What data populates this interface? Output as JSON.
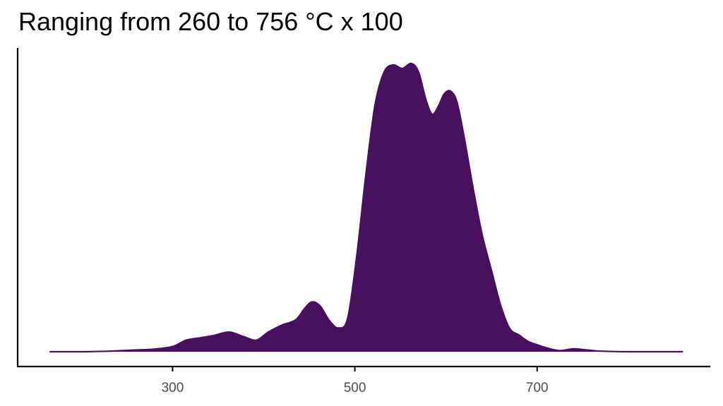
{
  "chart_data": {
    "type": "area",
    "subtype": "density",
    "title": "Ranging from 260 to 756 °C x 100",
    "xlabel": "",
    "ylabel": "",
    "x_ticks": [
      300,
      500,
      700
    ],
    "xlim": [
      130,
      890
    ],
    "ylim": [
      0,
      1.0
    ],
    "grid": false,
    "legend": "none",
    "fill_color": "#48105e",
    "series": [
      {
        "x": [
          165,
          200,
          230,
          260,
          280,
          300,
          315,
          330,
          345,
          362,
          378,
          392,
          405,
          420,
          435,
          445,
          453,
          462,
          472,
          482,
          492,
          502,
          512,
          522,
          532,
          542,
          552,
          562,
          570,
          578,
          585,
          592,
          598,
          605,
          612,
          620,
          630,
          640,
          650,
          660,
          670,
          680,
          690,
          700,
          712,
          725,
          740,
          755,
          770,
          800,
          860
        ],
        "y": [
          0.0,
          0.0,
          0.002,
          0.006,
          0.009,
          0.018,
          0.04,
          0.048,
          0.056,
          0.068,
          0.052,
          0.04,
          0.068,
          0.092,
          0.11,
          0.15,
          0.172,
          0.158,
          0.108,
          0.082,
          0.115,
          0.33,
          0.61,
          0.85,
          0.965,
          0.99,
          0.978,
          0.995,
          0.965,
          0.87,
          0.82,
          0.85,
          0.89,
          0.9,
          0.862,
          0.74,
          0.56,
          0.4,
          0.28,
          0.16,
          0.08,
          0.058,
          0.036,
          0.024,
          0.012,
          0.004,
          0.01,
          0.006,
          0.002,
          0.0,
          0.0
        ]
      }
    ]
  }
}
